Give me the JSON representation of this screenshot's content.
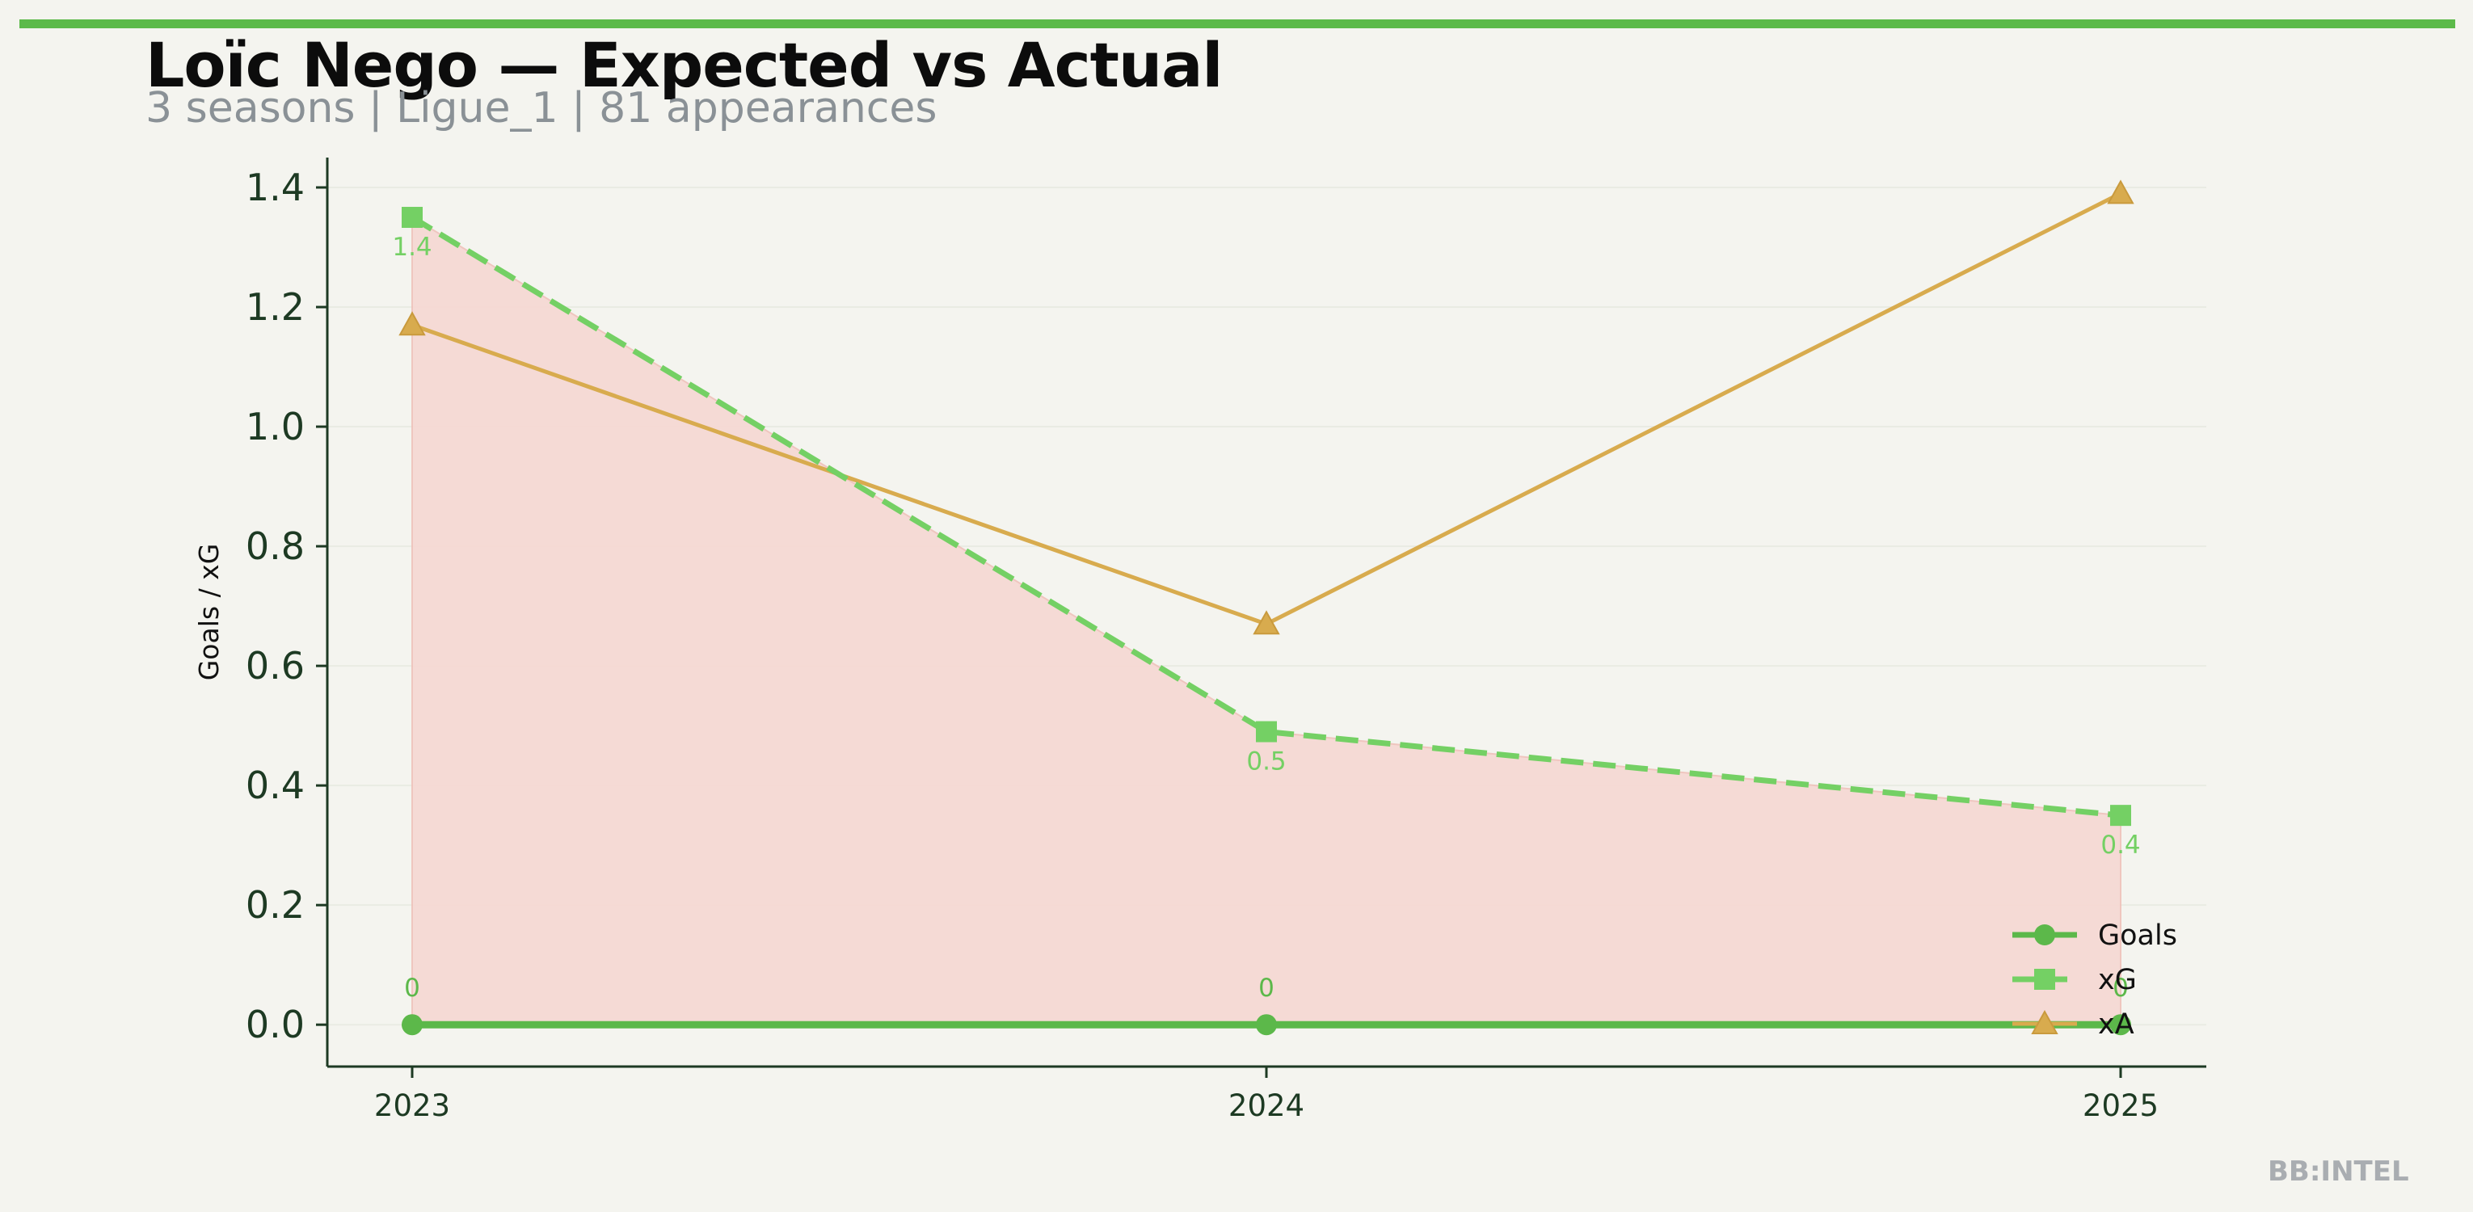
{
  "header": {
    "title": "Loïc Nego — Expected vs Actual",
    "subtitle": "3 seasons | Ligue_1 | 81 appearances"
  },
  "watermark": "BB:INTEL",
  "colors": {
    "goals": "#5cb84a",
    "xg": "#74d064",
    "xa": "#d8ab4e",
    "fill": "#f6d9d4",
    "accent_bar": "#5cba4a"
  },
  "chart_data": {
    "type": "line",
    "title": "Loïc Nego — Expected vs Actual",
    "xlabel": "",
    "ylabel": "Goals / xG",
    "x": [
      "2023",
      "2024",
      "2025"
    ],
    "ylim": [
      -0.07,
      1.45
    ],
    "yticks": [
      "0.0",
      "0.2",
      "0.4",
      "0.6",
      "0.8",
      "1.0",
      "1.2",
      "1.4"
    ],
    "grid": true,
    "legend": "lower-right",
    "series": [
      {
        "name": "Goals",
        "values": [
          0,
          0,
          0
        ],
        "marker": "circle",
        "style": "solid",
        "labels": [
          "0",
          "0",
          "0"
        ]
      },
      {
        "name": "xG",
        "values": [
          1.35,
          0.49,
          0.35
        ],
        "marker": "square",
        "style": "dashed",
        "labels": [
          "1.4",
          "0.5",
          "0.4"
        ]
      },
      {
        "name": "xA",
        "values": [
          1.17,
          0.67,
          1.39
        ],
        "marker": "triangle",
        "style": "solid"
      }
    ],
    "fill_between": {
      "from": "Goals",
      "to": "xG",
      "meaning": "underperformance"
    }
  }
}
